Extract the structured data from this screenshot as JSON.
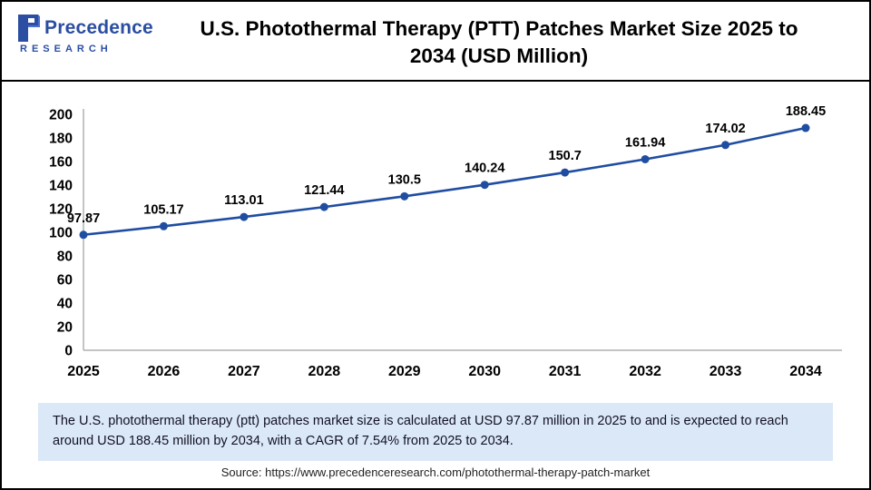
{
  "header": {
    "brand": "Precedence",
    "brand_sub": "RESEARCH",
    "title": "U.S. Photothermal Therapy (PTT) Patches Market Size 2025 to 2034 (USD Million)"
  },
  "chart_data": {
    "type": "line",
    "title": "U.S. Photothermal Therapy (PTT) Patches Market Size 2025 to 2034 (USD Million)",
    "categories": [
      "2025",
      "2026",
      "2027",
      "2028",
      "2029",
      "2030",
      "2031",
      "2032",
      "2033",
      "2034"
    ],
    "values": [
      97.87,
      105.17,
      113.01,
      121.44,
      130.5,
      140.24,
      150.7,
      161.94,
      174.02,
      188.45
    ],
    "point_labels": [
      "97.87",
      "105.17",
      "113.01",
      "121.44",
      "130.5",
      "140.24",
      "150.7",
      "161.94",
      "174.02",
      "188.45"
    ],
    "xlabel": "",
    "ylabel": "",
    "ylim": [
      0,
      200
    ],
    "ytick_step": 20,
    "grid": false,
    "legend_position": "none",
    "line_color": "#1f4da1",
    "marker_color": "#1f4da1",
    "axis_color": "#b0b0b0",
    "label_color": "#000000"
  },
  "summary": {
    "text": "The U.S. photothermal therapy (ptt) patches market  size is calculated at USD 97.87 million in 2025 to and is expected to reach around USD 188.45 million by 2034, with a CAGR of 7.54% from 2025 to 2034."
  },
  "source": {
    "text": "Source: https://www.precedenceresearch.com/photothermal-therapy-patch-market"
  },
  "colors": {
    "brand_blue": "#2b4ea2",
    "brand_blue_light": "#4a6fd0",
    "summary_bg": "#dbe8f8"
  }
}
